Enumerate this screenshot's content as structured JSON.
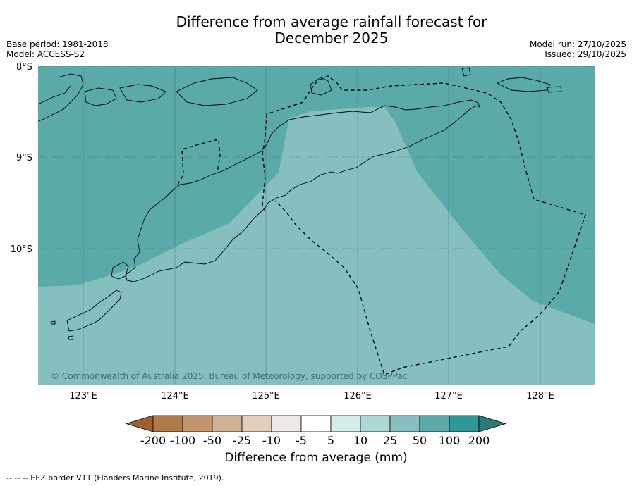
{
  "title": {
    "line1": "Difference from average rainfall forecast for",
    "line2": "December 2025"
  },
  "meta_left": {
    "base_period": "Base period: 1981-2018",
    "model": "Model: ACCESS-S2"
  },
  "meta_right": {
    "model_run": "Model run: 27/10/2025",
    "issued": "Issued: 29/10/2025"
  },
  "map": {
    "lat_labels": [
      "8°S",
      "9°S",
      "10°S"
    ],
    "lon_labels": [
      "123°E",
      "124°E",
      "125°E",
      "126°E",
      "127°E",
      "128°E"
    ],
    "copyright": "© Commonwealth of Australia 2025, Bureau of Meteorology, supported by COSPPac"
  },
  "colorbar": {
    "ticks": [
      "-200",
      "-100",
      "-50",
      "-25",
      "-10",
      "-5",
      "5",
      "10",
      "25",
      "50",
      "100",
      "200"
    ],
    "colors": [
      "#a0602d",
      "#ae7a45",
      "#c2956e",
      "#d3b396",
      "#e3cfbd",
      "#ede9e6",
      "#ffffff",
      "#d4ecea",
      "#aed8d6",
      "#85c0bf",
      "#5aaaaa",
      "#2f9897",
      "#2c7a77"
    ],
    "title": "Difference from average (mm)"
  },
  "footnote": "--  --  -- EEZ border V11 (Flanders Marine Institute, 2019)."
}
